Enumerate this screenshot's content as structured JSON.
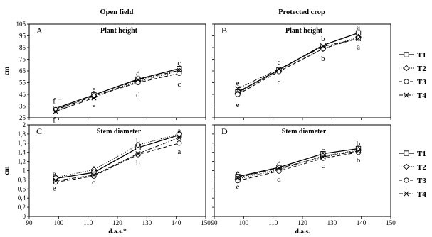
{
  "figure": {
    "column_titles": [
      "Open field",
      "Protected crop"
    ]
  },
  "chart_data": [
    {
      "type": "line",
      "panel_letter": "A",
      "panel_title": "Plant height",
      "ylabel": "cm",
      "xlabel": "",
      "ylim": [
        25,
        105
      ],
      "yticks": [
        "25",
        "35",
        "45",
        "55",
        "65",
        "75",
        "85",
        "95",
        "105"
      ],
      "xlim": [
        90,
        150
      ],
      "xticks": [],
      "x": [
        99,
        112,
        127,
        141
      ],
      "series": [
        {
          "name": "T1",
          "values": [
            33,
            44.5,
            58,
            67
          ]
        },
        {
          "name": "T2",
          "values": [
            31.5,
            43.5,
            56,
            65
          ]
        },
        {
          "name": "T3",
          "values": [
            32,
            43.5,
            55,
            63
          ]
        },
        {
          "name": "T4",
          "values": [
            30.5,
            42,
            57.5,
            65.5
          ]
        }
      ],
      "letters": [
        {
          "text": "f",
          "x": 98.5,
          "y": 40
        },
        {
          "text": "+",
          "x": 100.5,
          "y": 41
        },
        {
          "text": "f",
          "x": 98.5,
          "y": 23.5
        },
        {
          "text": "e",
          "x": 112,
          "y": 50
        },
        {
          "text": "e",
          "x": 112,
          "y": 36.5
        },
        {
          "text": "d",
          "x": 127,
          "y": 63
        },
        {
          "text": "d",
          "x": 127,
          "y": 45
        },
        {
          "text": "c",
          "x": 141,
          "y": 72
        },
        {
          "text": "c",
          "x": 141,
          "y": 54
        }
      ]
    },
    {
      "type": "line",
      "panel_letter": "B",
      "panel_title": "Plant height",
      "ylabel": "",
      "xlabel": "",
      "ylim": [
        25,
        105
      ],
      "yticks": [],
      "xlim": [
        90,
        150
      ],
      "xticks": [],
      "x": [
        98,
        112,
        127,
        139
      ],
      "series": [
        {
          "name": "T1",
          "values": [
            47,
            66,
            87,
            97.5
          ]
        },
        {
          "name": "T2",
          "values": [
            46,
            65,
            84,
            94
          ]
        },
        {
          "name": "T3",
          "values": [
            45,
            64.5,
            84,
            93
          ]
        },
        {
          "name": "T4",
          "values": [
            50,
            66.5,
            86,
            92.5
          ]
        }
      ],
      "letters": [
        {
          "text": "e",
          "x": 98,
          "y": 55
        },
        {
          "text": "e",
          "x": 98,
          "y": 36.5
        },
        {
          "text": "c",
          "x": 112,
          "y": 73
        },
        {
          "text": "c",
          "x": 112,
          "y": 56
        },
        {
          "text": "b",
          "x": 127,
          "y": 93
        },
        {
          "text": "b",
          "x": 127,
          "y": 76
        },
        {
          "text": "a",
          "x": 139,
          "y": 103
        },
        {
          "text": "a",
          "x": 139,
          "y": 86
        }
      ]
    },
    {
      "type": "line",
      "panel_letter": "C",
      "panel_title": "Stem diameter",
      "ylabel": "cm",
      "xlabel": "d.a.s.*",
      "ylim": [
        0,
        2
      ],
      "yticks": [
        "0",
        "0,2",
        "0,4",
        "0,6",
        "0,8",
        "1",
        "1,2",
        "1,4",
        "1,6",
        "1,8",
        "2"
      ],
      "xlim": [
        90,
        150
      ],
      "xticks": [
        "90",
        "100",
        "110",
        "120",
        "130",
        "140",
        "150"
      ],
      "x": [
        99,
        112,
        127,
        141
      ],
      "series": [
        {
          "name": "T1",
          "values": [
            0.83,
            0.96,
            1.5,
            1.78
          ]
        },
        {
          "name": "T2",
          "values": [
            0.85,
            1.02,
            1.56,
            1.8
          ]
        },
        {
          "name": "T3",
          "values": [
            0.75,
            0.88,
            1.35,
            1.6
          ]
        },
        {
          "name": "T4",
          "values": [
            0.78,
            0.9,
            1.37,
            1.72
          ]
        }
      ],
      "letters": [
        {
          "text": "e",
          "x": 98.5,
          "y": 0.94
        },
        {
          "text": "e",
          "x": 98.5,
          "y": 0.63
        },
        {
          "text": "e",
          "x": 112,
          "y": 1.08
        },
        {
          "text": "d",
          "x": 112,
          "y": 0.76
        },
        {
          "text": "b",
          "x": 127,
          "y": 1.66
        },
        {
          "text": "b",
          "x": 127,
          "y": 1.18
        },
        {
          "text": "a",
          "x": 141,
          "y": 1.88
        },
        {
          "text": "a",
          "x": 141,
          "y": 1.43
        }
      ]
    },
    {
      "type": "line",
      "panel_letter": "D",
      "panel_title": "Stem diameter",
      "ylabel": "",
      "xlabel": "d.a.s.",
      "ylim": [
        0,
        2
      ],
      "yticks": [],
      "xlim": [
        90,
        150
      ],
      "xticks": [
        "90",
        "100",
        "110",
        "120",
        "130",
        "140",
        "150"
      ],
      "x": [
        98,
        112,
        127,
        139
      ],
      "series": [
        {
          "name": "T1",
          "values": [
            0.87,
            1.07,
            1.37,
            1.48
          ]
        },
        {
          "name": "T2",
          "values": [
            0.82,
            1.02,
            1.32,
            1.45
          ]
        },
        {
          "name": "T3",
          "values": [
            0.78,
            0.99,
            1.27,
            1.4
          ]
        },
        {
          "name": "T4",
          "values": [
            0.85,
            1.05,
            1.3,
            1.43
          ]
        }
      ],
      "letters": [
        {
          "text": "e",
          "x": 98,
          "y": 0.97
        },
        {
          "text": "e",
          "x": 98,
          "y": 0.66
        },
        {
          "text": "d",
          "x": 112,
          "y": 1.16
        },
        {
          "text": "d",
          "x": 112,
          "y": 0.82
        },
        {
          "text": "c",
          "x": 127,
          "y": 1.46
        },
        {
          "text": "c",
          "x": 127,
          "y": 1.12
        },
        {
          "text": "b",
          "x": 139,
          "y": 1.6
        },
        {
          "text": "b",
          "x": 139,
          "y": 1.24
        }
      ]
    }
  ],
  "legends": [
    {
      "items": [
        {
          "name": "T1",
          "marker": "square",
          "dash": "solid"
        },
        {
          "name": "T2",
          "marker": "diamond",
          "dash": "dotted"
        },
        {
          "name": "T3",
          "marker": "circle",
          "dash": "dashed"
        },
        {
          "name": "T4",
          "marker": "x",
          "dash": "dashdot"
        }
      ]
    },
    {
      "items": [
        {
          "name": "T1",
          "marker": "square",
          "dash": "solid"
        },
        {
          "name": "T2",
          "marker": "diamond",
          "dash": "dotted"
        },
        {
          "name": "T3",
          "marker": "circle",
          "dash": "dashed"
        },
        {
          "name": "T4",
          "marker": "x",
          "dash": "dashdot"
        }
      ]
    }
  ]
}
